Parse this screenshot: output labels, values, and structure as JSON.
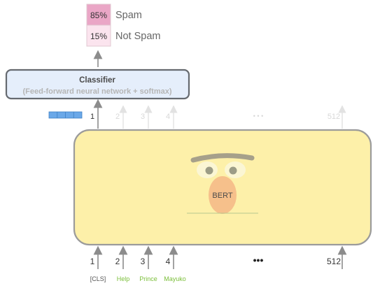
{
  "output": {
    "rows": [
      {
        "percent": "85%",
        "label": "Spam",
        "fill": "#eaa6c6"
      },
      {
        "percent": "15%",
        "label": "Not Spam",
        "fill": "#fbe4ee"
      }
    ]
  },
  "classifier": {
    "title": "Classifier",
    "subtitle": "(Feed-forward neural network + softmax)",
    "fill": "#e5eefb",
    "stroke": "#666a70"
  },
  "positions_top": {
    "first": "1",
    "faded": [
      "2",
      "3",
      "4"
    ],
    "ellipsis": "• • •",
    "last": "512"
  },
  "bert": {
    "label": "BERT",
    "box_fill": "#fdf0a9",
    "nose_fill": "#f6c08b"
  },
  "positions_bottom": {
    "numbers": [
      "1",
      "2",
      "3",
      "4"
    ],
    "ellipsis": "•••",
    "last": "512"
  },
  "tokens": [
    {
      "text": "[CLS]",
      "color": "#555555"
    },
    {
      "text": "Help",
      "color": "#7bbf3a"
    },
    {
      "text": "Prince",
      "color": "#7bbf3a"
    },
    {
      "text": "Mayuko",
      "color": "#7bbf3a"
    }
  ],
  "vector_color": "#6aa8e8"
}
